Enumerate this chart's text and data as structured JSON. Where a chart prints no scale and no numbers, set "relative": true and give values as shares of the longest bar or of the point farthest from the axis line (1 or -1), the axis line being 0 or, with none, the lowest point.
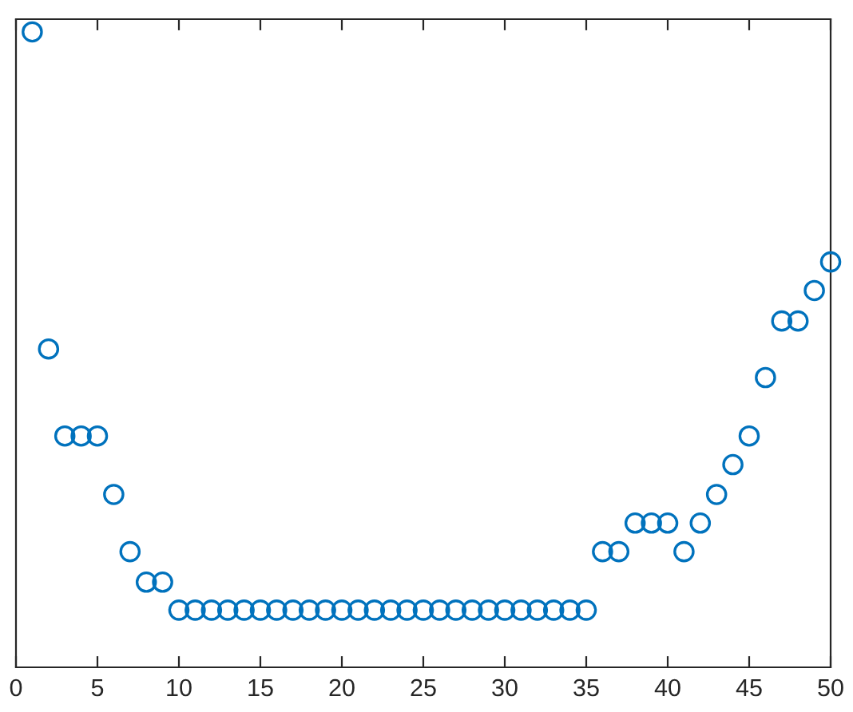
{
  "chart_data": {
    "type": "scatter",
    "relative": true,
    "x": [
      1,
      2,
      3,
      4,
      5,
      6,
      7,
      8,
      9,
      10,
      11,
      12,
      13,
      14,
      15,
      16,
      17,
      18,
      19,
      20,
      21,
      22,
      23,
      24,
      25,
      26,
      27,
      28,
      29,
      30,
      31,
      32,
      33,
      34,
      35,
      36,
      37,
      38,
      39,
      40,
      41,
      42,
      43,
      44,
      45,
      46,
      47,
      48,
      49,
      50
    ],
    "values": [
      1,
      0.501,
      0.364,
      0.364,
      0.364,
      0.272,
      0.182,
      0.134,
      0.134,
      0.09,
      0.09,
      0.09,
      0.09,
      0.09,
      0.09,
      0.09,
      0.09,
      0.09,
      0.09,
      0.09,
      0.09,
      0.09,
      0.09,
      0.09,
      0.09,
      0.09,
      0.09,
      0.09,
      0.09,
      0.09,
      0.09,
      0.09,
      0.09,
      0.09,
      0.09,
      0.182,
      0.182,
      0.227,
      0.227,
      0.227,
      0.182,
      0.227,
      0.272,
      0.319,
      0.364,
      0.456,
      0.545,
      0.545,
      0.593,
      0.638
    ],
    "color": "#0072bd",
    "marker": "circle",
    "xlim": [
      0,
      50
    ],
    "xticks": [
      0,
      5,
      10,
      15,
      20,
      25,
      30,
      35,
      40,
      45,
      50
    ],
    "grid": false
  }
}
